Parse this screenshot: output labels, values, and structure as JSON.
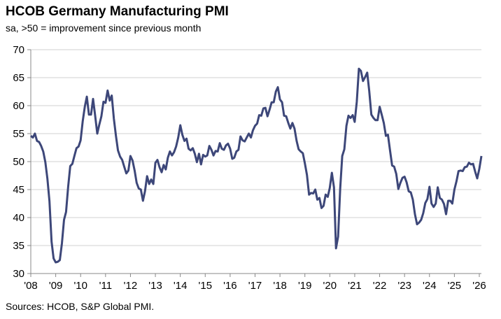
{
  "chart_data": {
    "type": "line",
    "title": "HCOB Germany Manufacturing PMI",
    "subtitle": "sa, >50 = improvement since previous month",
    "source": "Sources: HCOB, S&P Global PMI.",
    "xlabel": "",
    "ylabel": "",
    "ylim": [
      30,
      70
    ],
    "yticks": [
      30,
      35,
      40,
      45,
      50,
      55,
      60,
      65,
      70
    ],
    "xtick_labels": [
      "'08",
      "'09",
      "'10",
      "'11",
      "'12",
      "'13",
      "'14",
      "'15",
      "'16",
      "'17",
      "'18",
      "'19",
      "'20",
      "'21",
      "'22",
      "'23",
      "'24",
      "'25",
      "'26"
    ],
    "start": "2008-01",
    "frequency": "monthly",
    "grid": "horizontal",
    "line_color": "#3d4779",
    "values": [
      54.6,
      54.3,
      55.0,
      53.7,
      53.5,
      52.8,
      51.8,
      49.9,
      47.0,
      42.9,
      35.7,
      32.7,
      32.0,
      32.1,
      32.4,
      35.4,
      39.6,
      41.0,
      45.5,
      49.2,
      49.6,
      51.0,
      52.4,
      52.7,
      53.8,
      57.2,
      59.8,
      61.6,
      58.4,
      58.4,
      61.2,
      58.2,
      55.0,
      56.6,
      58.1,
      60.7,
      60.5,
      62.7,
      60.9,
      61.8,
      57.7,
      54.6,
      52.0,
      50.9,
      50.3,
      49.1,
      47.9,
      48.4,
      51.0,
      50.2,
      48.4,
      46.2,
      45.2,
      45.0,
      43.0,
      44.7,
      47.4,
      46.0,
      46.8,
      46.0,
      49.8,
      50.3,
      49.0,
      48.1,
      49.4,
      48.6,
      50.7,
      51.8,
      51.1,
      51.7,
      52.7,
      54.3,
      56.5,
      54.8,
      53.7,
      54.1,
      52.3,
      52.0,
      52.4,
      51.4,
      49.9,
      51.4,
      49.5,
      51.2,
      50.9,
      51.1,
      52.8,
      52.1,
      51.1,
      51.9,
      51.8,
      53.3,
      52.3,
      52.1,
      52.9,
      53.2,
      52.3,
      50.5,
      50.7,
      51.8,
      52.1,
      54.5,
      53.8,
      53.6,
      54.3,
      55.0,
      54.3,
      55.6,
      56.4,
      56.8,
      58.3,
      58.2,
      59.5,
      59.6,
      58.1,
      59.3,
      60.6,
      60.6,
      62.5,
      63.3,
      61.1,
      60.6,
      58.2,
      58.1,
      56.9,
      55.9,
      56.9,
      55.9,
      53.7,
      52.2,
      51.8,
      51.5,
      49.7,
      47.6,
      44.1,
      44.4,
      44.3,
      45.0,
      43.2,
      43.5,
      41.7,
      42.1,
      44.1,
      43.7,
      45.3,
      48.0,
      45.4,
      34.5,
      36.6,
      45.2,
      51.0,
      52.2,
      56.4,
      58.2,
      57.8,
      58.3,
      57.1,
      60.7,
      66.6,
      66.2,
      64.4,
      65.1,
      65.9,
      62.6,
      58.4,
      57.8,
      57.4,
      57.4,
      59.8,
      58.4,
      56.9,
      54.6,
      54.8,
      52.0,
      49.3,
      49.1,
      47.8,
      45.1,
      46.2,
      47.1,
      47.3,
      46.3,
      44.7,
      44.5,
      43.2,
      40.6,
      38.8,
      39.1,
      39.6,
      40.8,
      42.6,
      43.3,
      45.5,
      42.5,
      41.9,
      42.5,
      45.4,
      43.5,
      43.2,
      42.4,
      40.6,
      43.0,
      43.0,
      42.5,
      45.0,
      46.5,
      48.3,
      48.4,
      48.3,
      49.0,
      49.1,
      49.8,
      49.5,
      49.6,
      48.2,
      47.0,
      48.7,
      51.0
    ]
  }
}
